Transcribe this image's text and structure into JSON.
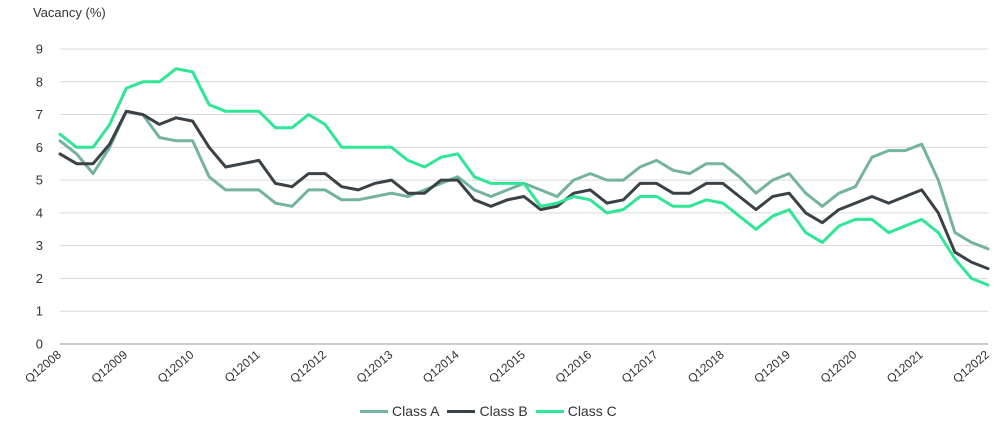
{
  "chart_data": {
    "type": "line",
    "ylabel": "Vacancy (%)",
    "xlabel": "",
    "ylim": [
      0,
      9
    ],
    "yticks": [
      "0",
      "1",
      "2",
      "3",
      "4",
      "5",
      "6",
      "7",
      "8",
      "9"
    ],
    "x_tick_labels": [
      "Q12008",
      "Q12009",
      "Q12010",
      "Q12011",
      "Q12012",
      "Q12013",
      "Q12014",
      "Q12015",
      "Q12016",
      "Q12017",
      "Q12018",
      "Q12019",
      "Q12020",
      "Q12021",
      "Q12022"
    ],
    "grid": "horizontal",
    "legend_position": "bottom",
    "series": [
      {
        "name": "Class A",
        "color": "#74b3a1",
        "values": [
          6.2,
          5.8,
          5.2,
          6.0,
          7.1,
          7.0,
          6.3,
          6.2,
          6.2,
          5.1,
          4.7,
          4.7,
          4.7,
          4.3,
          4.2,
          4.7,
          4.7,
          4.4,
          4.4,
          4.5,
          4.6,
          4.5,
          4.7,
          4.9,
          5.1,
          4.7,
          4.5,
          4.7,
          4.9,
          4.7,
          4.5,
          5.0,
          5.2,
          5.0,
          5.0,
          5.4,
          5.6,
          5.3,
          5.2,
          5.5,
          5.5,
          5.1,
          4.6,
          5.0,
          5.2,
          4.6,
          4.2,
          4.6,
          4.8,
          5.7,
          5.9,
          5.9,
          6.1,
          5.0,
          3.4,
          3.1,
          2.9
        ]
      },
      {
        "name": "Class B",
        "color": "#3a4147",
        "values": [
          5.8,
          5.5,
          5.5,
          6.1,
          7.1,
          7.0,
          6.7,
          6.9,
          6.8,
          6.0,
          5.4,
          5.5,
          5.6,
          4.9,
          4.8,
          5.2,
          5.2,
          4.8,
          4.7,
          4.9,
          5.0,
          4.6,
          4.6,
          5.0,
          5.0,
          4.4,
          4.2,
          4.4,
          4.5,
          4.1,
          4.2,
          4.6,
          4.7,
          4.3,
          4.4,
          4.9,
          4.9,
          4.6,
          4.6,
          4.9,
          4.9,
          4.5,
          4.1,
          4.5,
          4.6,
          4.0,
          3.7,
          4.1,
          4.3,
          4.5,
          4.3,
          4.5,
          4.7,
          4.0,
          2.8,
          2.5,
          2.3
        ]
      },
      {
        "name": "Class C",
        "color": "#2ee695",
        "values": [
          6.4,
          6.0,
          6.0,
          6.7,
          7.8,
          8.0,
          8.0,
          8.4,
          8.3,
          7.3,
          7.1,
          7.1,
          7.1,
          6.6,
          6.6,
          7.0,
          6.7,
          6.0,
          6.0,
          6.0,
          6.0,
          5.6,
          5.4,
          5.7,
          5.8,
          5.1,
          4.9,
          4.9,
          4.9,
          4.2,
          4.3,
          4.5,
          4.4,
          4.0,
          4.1,
          4.5,
          4.5,
          4.2,
          4.2,
          4.4,
          4.3,
          3.9,
          3.5,
          3.9,
          4.1,
          3.4,
          3.1,
          3.6,
          3.8,
          3.8,
          3.4,
          3.6,
          3.8,
          3.4,
          2.6,
          2.0,
          1.8
        ]
      }
    ]
  }
}
